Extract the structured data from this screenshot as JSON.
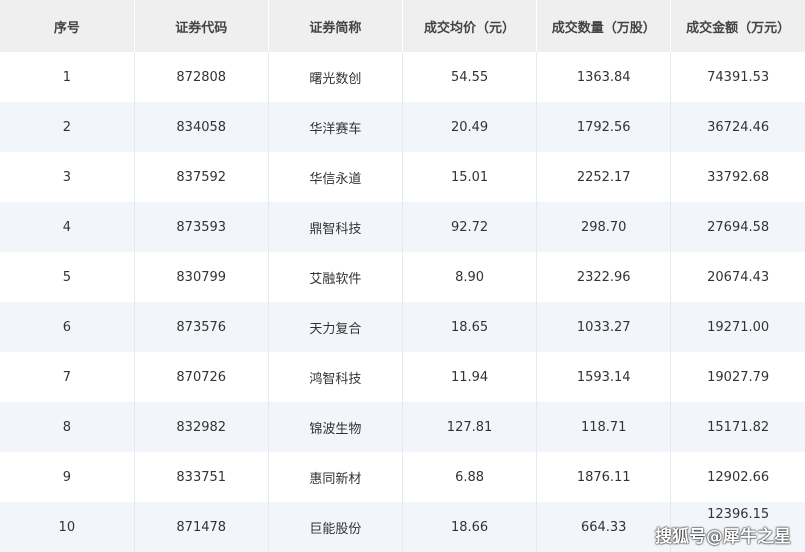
{
  "headers": [
    "序号",
    "证券代码",
    "证券简称",
    "成交均价（元）",
    "成交数量（万股）",
    "成交金额（万元）"
  ],
  "rows": [
    [
      "1",
      "872808",
      "曙光数创",
      "54.55",
      "1363.84",
      "74391.53"
    ],
    [
      "2",
      "834058",
      "华洋赛车",
      "20.49",
      "1792.56",
      "36724.46"
    ],
    [
      "3",
      "837592",
      "华信永道",
      "15.01",
      "2252.17",
      "33792.68"
    ],
    [
      "4",
      "873593",
      "鼎智科技",
      "92.72",
      "298.70",
      "27694.58"
    ],
    [
      "5",
      "830799",
      "艾融软件",
      "8.90",
      "2322.96",
      "20674.43"
    ],
    [
      "6",
      "873576",
      "天力复合",
      "18.65",
      "1033.27",
      "19271.00"
    ],
    [
      "7",
      "870726",
      "鸿智科技",
      "11.94",
      "1593.14",
      "19027.79"
    ],
    [
      "8",
      "832982",
      "锦波生物",
      "127.81",
      "118.71",
      "15171.82"
    ],
    [
      "9",
      "833751",
      "惠同新材",
      "6.88",
      "1876.11",
      "12902.66"
    ],
    [
      "10",
      "871478",
      "巨能股份",
      "18.66",
      "664.33",
      "12396.15"
    ]
  ],
  "watermark": "搜狐号@犀牛之星"
}
